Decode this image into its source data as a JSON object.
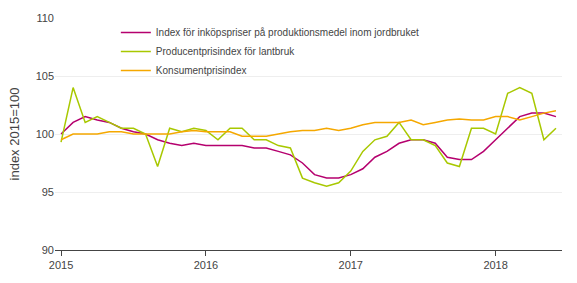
{
  "chart_data": {
    "type": "line",
    "ylabel": "index 2015=100",
    "categories": [
      "2015",
      null,
      null,
      null,
      null,
      null,
      null,
      null,
      null,
      null,
      null,
      null,
      "2016",
      null,
      null,
      null,
      null,
      null,
      null,
      null,
      null,
      null,
      null,
      null,
      "2017",
      null,
      null,
      null,
      null,
      null,
      null,
      null,
      null,
      null,
      null,
      null,
      "2018",
      null,
      null,
      null,
      null,
      null
    ],
    "series": [
      {
        "name": "Index för inköpspriser på produktionsmedel inom jordbruket",
        "color": "#b5006e",
        "values": [
          100.0,
          101.0,
          101.5,
          101.2,
          101.0,
          100.5,
          100.2,
          100.0,
          99.5,
          99.2,
          99.0,
          99.2,
          99.0,
          99.0,
          99.0,
          99.0,
          98.8,
          98.8,
          98.5,
          98.2,
          97.5,
          96.5,
          96.2,
          96.2,
          96.5,
          97.0,
          98.0,
          98.5,
          99.2,
          99.5,
          99.5,
          99.2,
          98.0,
          97.8,
          97.8,
          98.5,
          99.5,
          100.5,
          101.5,
          101.8,
          101.8,
          101.5
        ]
      },
      {
        "name": "Producentprisindex för lantbruk",
        "color": "#a8c800",
        "values": [
          99.3,
          104.0,
          101.0,
          101.5,
          101.0,
          100.5,
          100.5,
          100.0,
          97.2,
          100.5,
          100.2,
          100.5,
          100.3,
          99.5,
          100.5,
          100.5,
          99.5,
          99.5,
          99.0,
          98.8,
          96.2,
          95.8,
          95.5,
          95.8,
          96.8,
          98.5,
          99.5,
          99.8,
          101.0,
          99.5,
          99.5,
          99.0,
          97.5,
          97.2,
          100.5,
          100.5,
          100.0,
          103.5,
          104.0,
          103.5,
          99.5,
          100.5
        ]
      },
      {
        "name": "Konsumentprisindex",
        "color": "#f5a800",
        "values": [
          99.5,
          100.0,
          100.0,
          100.0,
          100.2,
          100.2,
          100.0,
          100.0,
          100.0,
          100.0,
          100.2,
          100.3,
          100.2,
          100.2,
          100.2,
          99.8,
          99.8,
          99.8,
          100.0,
          100.2,
          100.3,
          100.3,
          100.5,
          100.3,
          100.5,
          100.8,
          101.0,
          101.0,
          101.0,
          101.2,
          100.8,
          101.0,
          101.2,
          101.3,
          101.2,
          101.2,
          101.5,
          101.5,
          101.2,
          101.5,
          101.8,
          102.0
        ]
      }
    ],
    "ylim": [
      90,
      110
    ],
    "yticks": [
      90,
      95,
      100,
      105,
      110
    ],
    "grid": true,
    "legend": "upper left"
  }
}
